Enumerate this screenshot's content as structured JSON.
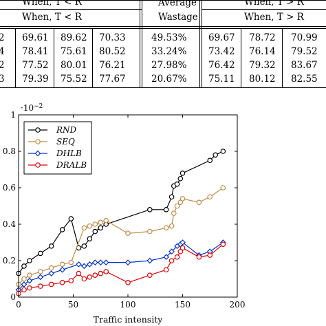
{
  "table": {
    "header_left_top": "When, T < R",
    "header_left_sub": "When, T < R",
    "header_avg_line1": "Average",
    "header_avg_line2": "Wastage",
    "header_right_top": "When, T > R",
    "header_right_sub": "When, T > R",
    "rows": [
      {
        "label": "2",
        "a": "69.61",
        "b": "89.62",
        "c": "70.33",
        "w": "49.53%",
        "d": "69.67",
        "e": "78.72",
        "f": "70.99"
      },
      {
        "label": "4",
        "a": "78.41",
        "b": "75.61",
        "c": "80.52",
        "w": "33.24%",
        "d": "73.42",
        "e": "76.14",
        "f": "79.52"
      },
      {
        "label": "2",
        "a": "77.52",
        "b": "80.01",
        "c": "76.21",
        "w": "27.98%",
        "d": "76.42",
        "e": "79.32",
        "f": "83.67"
      },
      {
        "label": "3",
        "a": "79.39",
        "b": "75.52",
        "c": "77.67",
        "w": "20.67%",
        "d": "75.11",
        "e": "80.12",
        "f": "82.55"
      }
    ]
  },
  "chart_data": {
    "type": "line",
    "xlabel": "Traffic intensity",
    "ylabel": "",
    "scale_label": "·10",
    "scale_exp": "−2",
    "xlim": [
      0,
      200
    ],
    "ylim": [
      0,
      1
    ],
    "xticks": [
      "0",
      "50",
      "100",
      "150",
      "200"
    ],
    "yticks": [
      "0",
      "0.2",
      "0.4",
      "0.6",
      "0.8",
      "1"
    ],
    "legend_position": "top-left",
    "series": [
      {
        "name": "RND",
        "color": "#000000",
        "marker": "circle",
        "x": [
          0,
          5,
          10,
          20,
          30,
          40,
          48,
          55,
          60,
          65,
          70,
          75,
          80,
          120,
          135,
          140,
          142,
          145,
          148,
          150,
          175,
          180,
          187
        ],
        "y": [
          0.13,
          0.17,
          0.2,
          0.24,
          0.28,
          0.37,
          0.43,
          0.27,
          0.28,
          0.32,
          0.36,
          0.38,
          0.4,
          0.48,
          0.48,
          0.55,
          0.61,
          0.62,
          0.65,
          0.68,
          0.75,
          0.78,
          0.8
        ]
      },
      {
        "name": "SEQ",
        "color": "#c08a45",
        "marker": "circle",
        "x": [
          0,
          5,
          10,
          20,
          30,
          40,
          48,
          60,
          65,
          70,
          75,
          80,
          100,
          120,
          135,
          140,
          142,
          145,
          148,
          150,
          165,
          175,
          187
        ],
        "y": [
          0.07,
          0.1,
          0.12,
          0.14,
          0.16,
          0.18,
          0.19,
          0.38,
          0.39,
          0.4,
          0.41,
          0.42,
          0.35,
          0.36,
          0.38,
          0.39,
          0.46,
          0.5,
          0.52,
          0.54,
          0.52,
          0.55,
          0.6
        ]
      },
      {
        "name": "DHLB",
        "color": "#0033cc",
        "marker": "diamond",
        "x": [
          0,
          5,
          10,
          20,
          30,
          40,
          55,
          60,
          65,
          70,
          75,
          80,
          100,
          120,
          135,
          140,
          145,
          148,
          150,
          165,
          175,
          187
        ],
        "y": [
          0.04,
          0.07,
          0.09,
          0.11,
          0.13,
          0.15,
          0.18,
          0.17,
          0.18,
          0.19,
          0.19,
          0.19,
          0.19,
          0.2,
          0.22,
          0.25,
          0.28,
          0.29,
          0.3,
          0.23,
          0.25,
          0.3
        ]
      },
      {
        "name": "DRALB",
        "color": "#dd0000",
        "marker": "circle",
        "x": [
          0,
          5,
          10,
          20,
          30,
          40,
          48,
          55,
          60,
          65,
          70,
          75,
          80,
          100,
          120,
          135,
          140,
          145,
          148,
          150,
          165,
          175,
          187
        ],
        "y": [
          0.02,
          0.04,
          0.05,
          0.06,
          0.07,
          0.08,
          0.09,
          0.13,
          0.1,
          0.11,
          0.12,
          0.13,
          0.14,
          0.08,
          0.12,
          0.15,
          0.2,
          0.22,
          0.25,
          0.27,
          0.22,
          0.23,
          0.29
        ]
      }
    ]
  }
}
